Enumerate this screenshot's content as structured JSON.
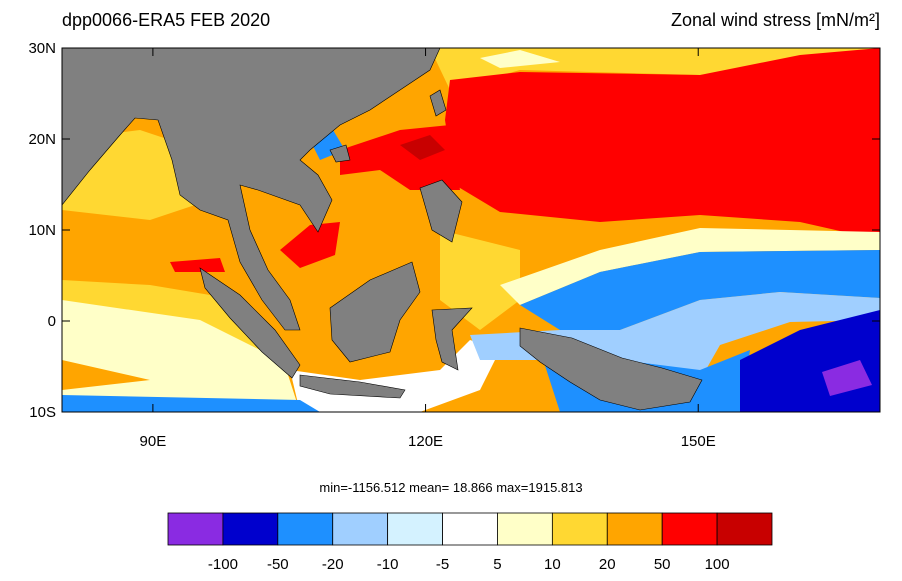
{
  "map": {
    "title_left": "dpp0066-ERA5  FEB 2020",
    "title_right": "Zonal wind stress [mN/m²]",
    "xlim": [
      80,
      170
    ],
    "ylim": [
      -10,
      30
    ],
    "xticks": [
      {
        "value": 90,
        "label": "90E"
      },
      {
        "value": 120,
        "label": "120E"
      },
      {
        "value": 150,
        "label": "150E"
      }
    ],
    "yticks": [
      {
        "value": 30,
        "label": "30N"
      },
      {
        "value": 20,
        "label": "20N"
      },
      {
        "value": 10,
        "label": "10N"
      },
      0,
      {
        "value": -10,
        "label": "10S"
      }
    ],
    "stats": "min=-1156.512  mean=  18.866  max=1915.813",
    "colorbar": {
      "levels": [
        -100,
        -50,
        -20,
        -10,
        -5,
        5,
        10,
        20,
        50,
        100
      ],
      "colors": [
        "#8a2be2",
        "#0000cd",
        "#1e90ff",
        "#a0cfff",
        "#d4f2ff",
        "#ffffff",
        "#ffffc8",
        "#ffd832",
        "#ffa500",
        "#ff0000",
        "#c80000"
      ]
    }
  }
}
